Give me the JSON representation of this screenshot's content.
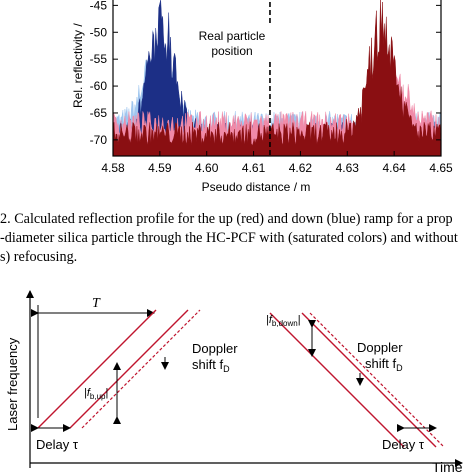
{
  "chart_data": {
    "type": "line",
    "xlabel": "Pseudo distance / m",
    "ylabel": "Rel. reflectivity / ",
    "xlim": [
      4.58,
      4.65
    ],
    "ylim": [
      -73,
      -44
    ],
    "x_ticks": [
      "4.58",
      "4.59",
      "4.60",
      "4.61",
      "4.62",
      "4.63",
      "4.64",
      "4.65"
    ],
    "y_ticks": [
      "-45",
      "-50",
      "-55",
      "-60",
      "-65",
      "-70"
    ],
    "annotation": {
      "text_line1": "Real particle",
      "text_line2": "position",
      "x": 4.6135
    },
    "series": [
      {
        "color": "#9fc6ef",
        "peak_x": 4.5895,
        "peak_y": -50,
        "noise_floor": -68
      },
      {
        "color": "#1c2f86",
        "peak_x": 4.5905,
        "peak_y": -44,
        "noise_floor": -70
      },
      {
        "color": "#f08aa8",
        "peak_x": 4.6395,
        "peak_y": -56,
        "noise_floor": -68
      },
      {
        "color": "#8a0f12",
        "peak_x": 4.6375,
        "peak_y": -44,
        "noise_floor": -70
      }
    ]
  },
  "caption": {
    "line1": "2. Calculated reflection profile for the up (red) and down (blue) ramp for a prop",
    "line2": "-diameter silica particle through the HC-PCF with (saturated colors) and without",
    "line3": "s) refocusing."
  },
  "diagram": {
    "ylabel": "Laser frequency",
    "xlabel": "Time",
    "period": "T",
    "doppler_left": "Doppler",
    "doppler_left_2": "shift f",
    "doppler_sub": "D",
    "doppler_right": "Doppler",
    "doppler_right_2": "shift f",
    "fb_up": "|f",
    "fb_up_sub": "b,up",
    "fb_down": "|f",
    "fb_down_sub": "b,down",
    "delay_left": "Delay τ",
    "delay_right": "Delay τ",
    "colors": {
      "ramp": "#c0152f"
    }
  }
}
